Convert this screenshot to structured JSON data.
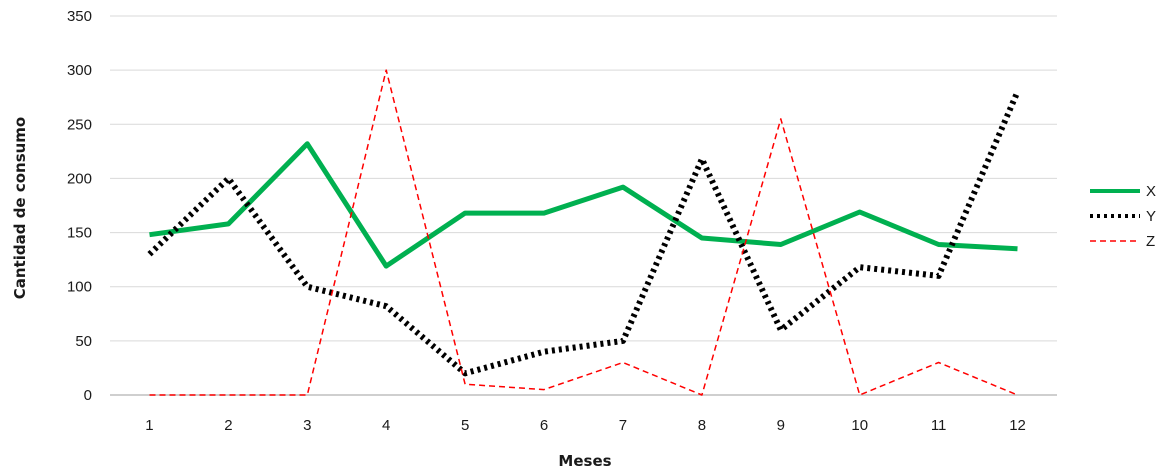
{
  "chart_data": {
    "type": "line",
    "title": "",
    "xlabel": "Meses",
    "ylabel": "Cantidad de consumo",
    "categories": [
      "1",
      "2",
      "3",
      "4",
      "5",
      "6",
      "7",
      "8",
      "9",
      "10",
      "11",
      "12"
    ],
    "ylim": [
      0,
      350
    ],
    "yticks": [
      "0",
      "50",
      "100",
      "150",
      "200",
      "250",
      "300",
      "350"
    ],
    "grid": true,
    "legend_position": "right",
    "series": [
      {
        "name": "X",
        "color": "#00b050",
        "style": "solid",
        "values": [
          148,
          158,
          232,
          119,
          168,
          168,
          192,
          145,
          139,
          169,
          139,
          135
        ]
      },
      {
        "name": "Y",
        "color": "#000000",
        "style": "dotted",
        "values": [
          130,
          200,
          100,
          82,
          20,
          40,
          50,
          218,
          60,
          118,
          110,
          280
        ]
      },
      {
        "name": "Z",
        "color": "#ff0000",
        "style": "dashed",
        "values": [
          0,
          0,
          0,
          300,
          10,
          5,
          30,
          0,
          255,
          0,
          30,
          0
        ]
      }
    ]
  }
}
